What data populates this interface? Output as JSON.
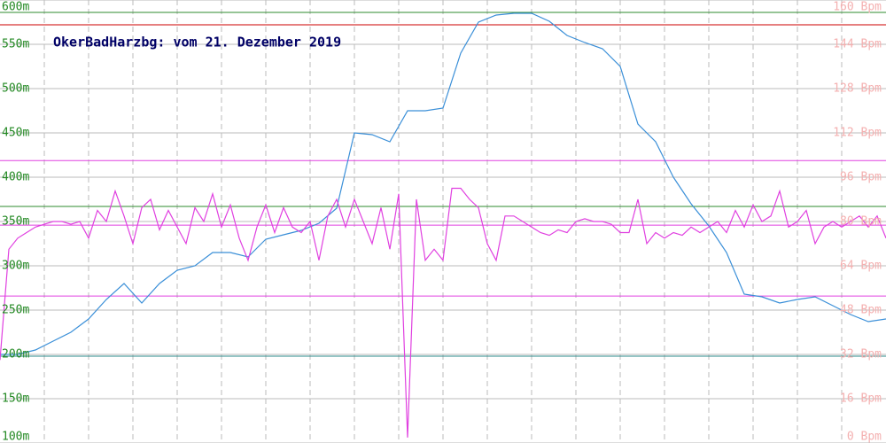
{
  "chart_data": {
    "type": "line",
    "title": "OkerBadHarzbg: vom 21. Dezember 2019",
    "ylim": [
      100,
      600
    ],
    "yticks": [
      {
        "value": 600,
        "label": "600m"
      },
      {
        "value": 550,
        "label": "550m"
      },
      {
        "value": 500,
        "label": "500m"
      },
      {
        "value": 450,
        "label": "450m"
      },
      {
        "value": 400,
        "label": "400m"
      },
      {
        "value": 350,
        "label": "350m"
      },
      {
        "value": 300,
        "label": "300m"
      },
      {
        "value": 250,
        "label": "250m"
      },
      {
        "value": 200,
        "label": "200m"
      },
      {
        "value": 150,
        "label": "150m"
      },
      {
        "value": 100,
        "label": "100m"
      }
    ],
    "y2lim": [
      0,
      160
    ],
    "y2ticks": [
      {
        "value": 160,
        "label": "160 Bpm"
      },
      {
        "value": 144,
        "label": "144 Bpm"
      },
      {
        "value": 128,
        "label": "128 Bpm"
      },
      {
        "value": 112,
        "label": "112 Bpm"
      },
      {
        "value": 96,
        "label": "96 Bpm"
      },
      {
        "value": 80,
        "label": "80 Bpm"
      },
      {
        "value": 64,
        "label": "64 Bpm"
      },
      {
        "value": 48,
        "label": "48 Bpm"
      },
      {
        "value": 32,
        "label": "32 Bpm"
      },
      {
        "value": 16,
        "label": "16 Bpm"
      },
      {
        "value": 0,
        "label": "0 Bpm"
      }
    ],
    "grid": true,
    "reference_lines": [
      {
        "axis": "y",
        "value": 586,
        "color": "#2e8b2e"
      },
      {
        "axis": "y",
        "value": 572,
        "color": "#cc0000"
      },
      {
        "axis": "y",
        "value": 367,
        "color": "#2e8b2e"
      },
      {
        "axis": "y",
        "value": 198,
        "color": "#2e8b8b"
      },
      {
        "axis": "y2",
        "value": 102,
        "color": "#e040e0"
      },
      {
        "axis": "y2",
        "value": 78.7,
        "color": "#e040e0"
      },
      {
        "axis": "y2",
        "value": 53.1,
        "color": "#e040e0"
      }
    ],
    "series": [
      {
        "color": "#3a8fd8",
        "values": [
          200,
          200,
          205,
          215,
          225,
          240,
          262,
          280,
          258,
          280,
          295,
          300,
          315,
          315,
          310,
          330,
          335,
          340,
          348,
          365,
          450,
          448,
          440,
          475,
          475,
          478,
          540,
          575,
          583,
          585,
          585,
          576,
          560,
          552,
          545,
          525,
          460,
          440,
          400,
          370,
          345,
          315,
          268,
          265,
          258,
          262,
          265,
          255,
          245,
          237,
          240
        ]
      },
      {
        "color": "#e040e0",
        "axis": "y2",
        "values": [
          30,
          70,
          74,
          76,
          78,
          79,
          80,
          80,
          79,
          80,
          74,
          84,
          80,
          91,
          82,
          72,
          85,
          88,
          77,
          84,
          78,
          72,
          85,
          80,
          90,
          78,
          86,
          74,
          66,
          78,
          86,
          76,
          85,
          78,
          76,
          80,
          66,
          82,
          88,
          78,
          88,
          80,
          72,
          85,
          70,
          90,
          2,
          88,
          66,
          70,
          66,
          92,
          92,
          88,
          85,
          72,
          66,
          82,
          82,
          80,
          78,
          76,
          75,
          77,
          76,
          80,
          81,
          80,
          80,
          79,
          76,
          76,
          88,
          72,
          76,
          74,
          76,
          75,
          78,
          76,
          78,
          80,
          76,
          84,
          78,
          86,
          80,
          82,
          91,
          78,
          80,
          84,
          72,
          78,
          80,
          78,
          80,
          82,
          78,
          82,
          74
        ]
      }
    ]
  }
}
